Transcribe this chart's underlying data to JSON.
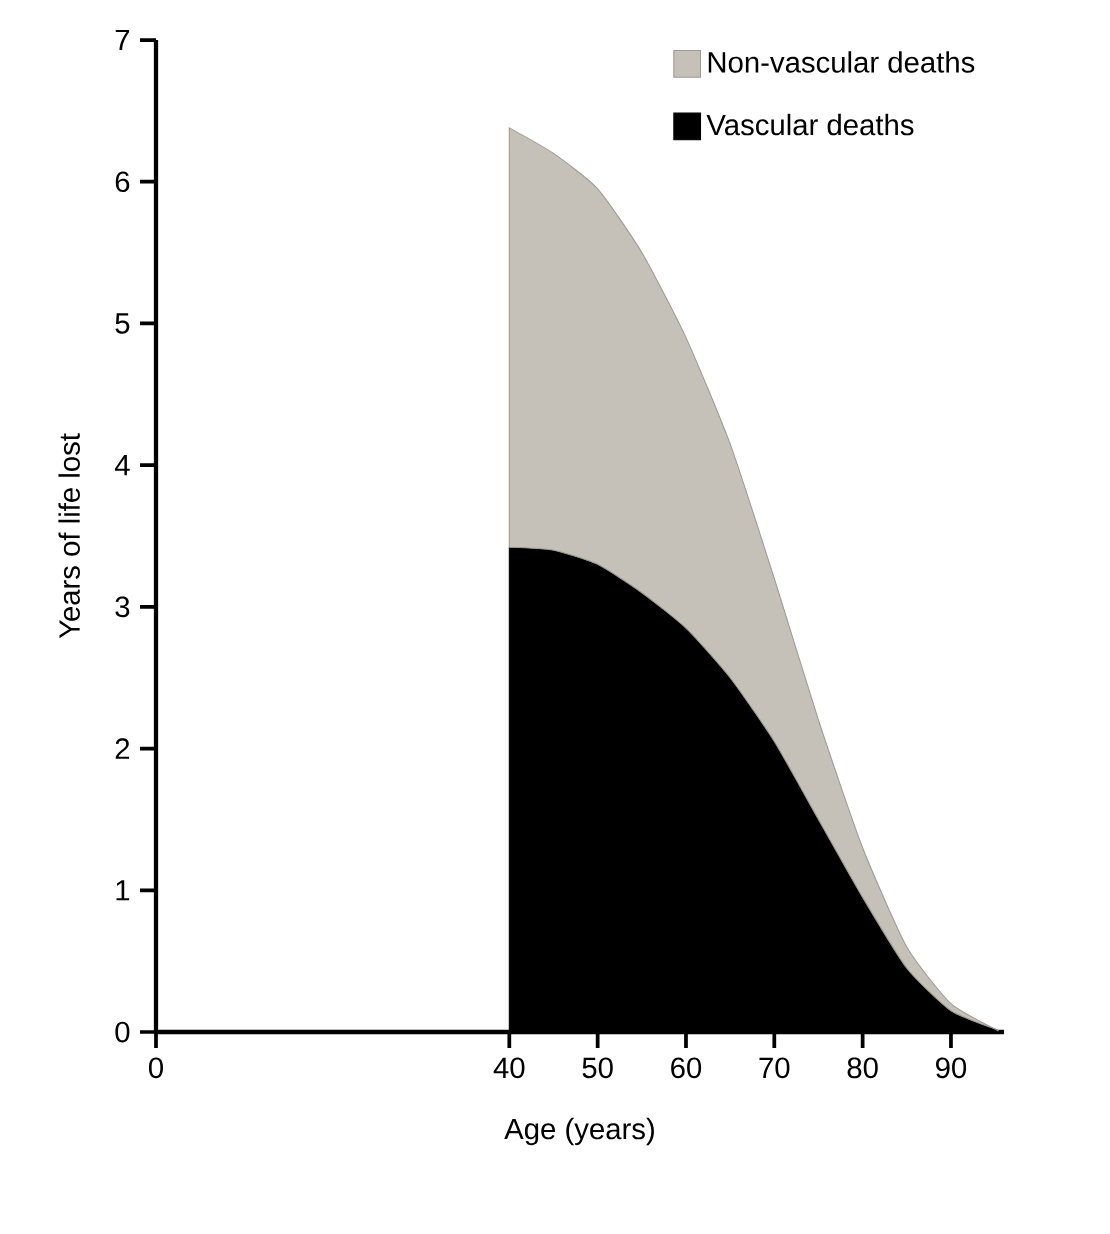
{
  "chart_data": {
    "type": "area",
    "stacked": true,
    "xlabel": "Age (years)",
    "ylabel": "Years of life lost",
    "xlim": [
      0,
      96
    ],
    "xticks": [
      0,
      40,
      50,
      60,
      70,
      80,
      90
    ],
    "ylim": [
      0,
      7
    ],
    "yticks": [
      0,
      1,
      2,
      3,
      4,
      5,
      6,
      7
    ],
    "x": [
      40,
      45,
      50,
      55,
      60,
      65,
      70,
      75,
      80,
      85,
      90,
      95
    ],
    "series": [
      {
        "name": "Vascular deaths",
        "color": "#000000",
        "values": [
          3.42,
          3.4,
          3.3,
          3.1,
          2.85,
          2.5,
          2.05,
          1.5,
          0.95,
          0.45,
          0.15,
          0.02
        ]
      },
      {
        "name": "Non-vascular deaths",
        "color": "#c5c1b9",
        "values": [
          2.96,
          2.8,
          2.65,
          2.4,
          2.05,
          1.65,
          1.15,
          0.7,
          0.35,
          0.15,
          0.05,
          0.0
        ]
      }
    ],
    "legend": "top right",
    "grid": false
  }
}
